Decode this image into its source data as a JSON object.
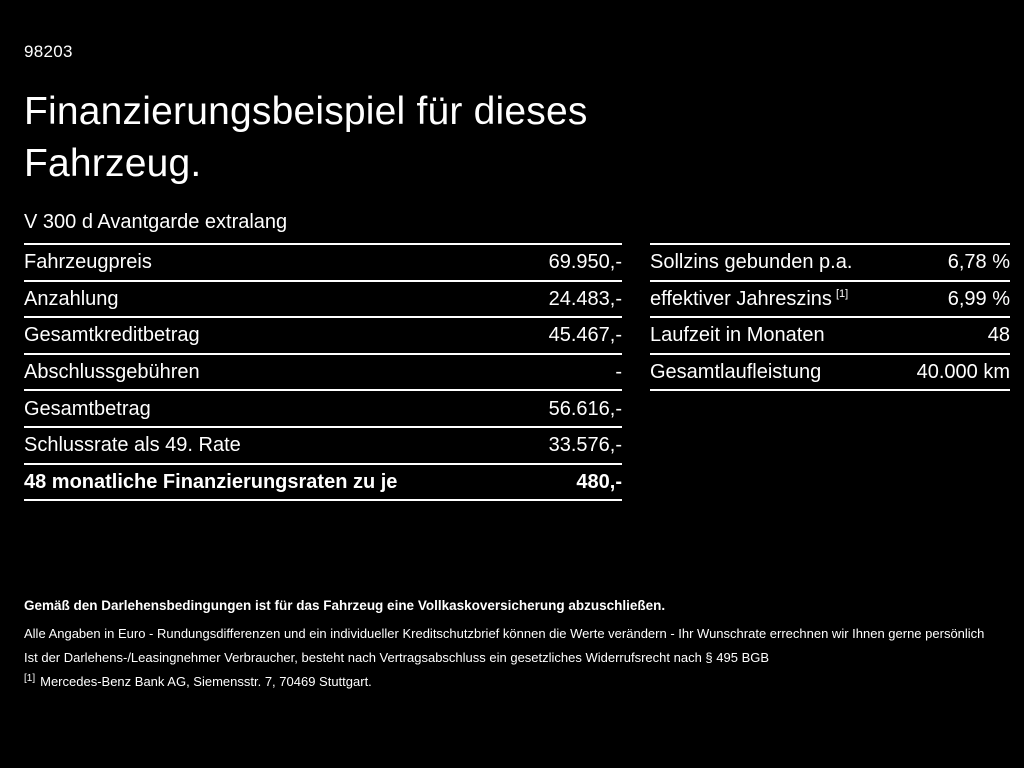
{
  "page": {
    "doc_number": "98203",
    "title_line1": "Finanzierungsbeispiel für dieses",
    "title_line2": "Fahrzeug.",
    "subtitle": "V 300 d Avantgarde extralang"
  },
  "tables": {
    "left": {
      "rows": [
        {
          "label": "Fahrzeugpreis",
          "value": "69.950,-"
        },
        {
          "label": "Anzahlung",
          "value": "24.483,-"
        },
        {
          "label": "Gesamtkreditbetrag",
          "value": "45.467,-"
        },
        {
          "label": "Abschlussgebühren",
          "value": "-"
        },
        {
          "label": "Gesamtbetrag",
          "value": "56.616,-"
        },
        {
          "label": "Schlussrate als 49. Rate",
          "value": "33.576,-"
        },
        {
          "label": "48 monatliche Finanzierungsraten zu je",
          "value": "480,-"
        }
      ]
    },
    "right": {
      "rows": [
        {
          "label": "Sollzins gebunden p.a.",
          "sup": "",
          "value": "6,78 %"
        },
        {
          "label": "effektiver Jahreszins",
          "sup": "[1]",
          "value": "6,99 %"
        },
        {
          "label": "Laufzeit in Monaten",
          "sup": "",
          "value": "48"
        },
        {
          "label": "Gesamtlaufleistung",
          "sup": "",
          "value": "40.000 km"
        }
      ]
    }
  },
  "footer": {
    "line1": "Gemäß den Darlehensbedingungen ist für das Fahrzeug eine Vollkaskoversicherung abzuschließen.",
    "line2": "Alle Angaben in Euro - Rundungsdifferenzen und ein individueller Kreditschutzbrief können die Werte verändern - Ihr Wunschrate errechnen wir Ihnen gerne persönlich",
    "line3": "Ist der Darlehens-/Leasingnehmer Verbraucher, besteht nach Vertragsabschluss ein gesetzliches Widerrufsrecht nach § 495 BGB",
    "footnote_marker": "[1]",
    "footnote_text": "Mercedes-Benz Bank AG, Siemensstr. 7, 70469 Stuttgart."
  },
  "colors": {
    "background": "#000000",
    "text": "#ffffff",
    "rule": "#ffffff"
  }
}
